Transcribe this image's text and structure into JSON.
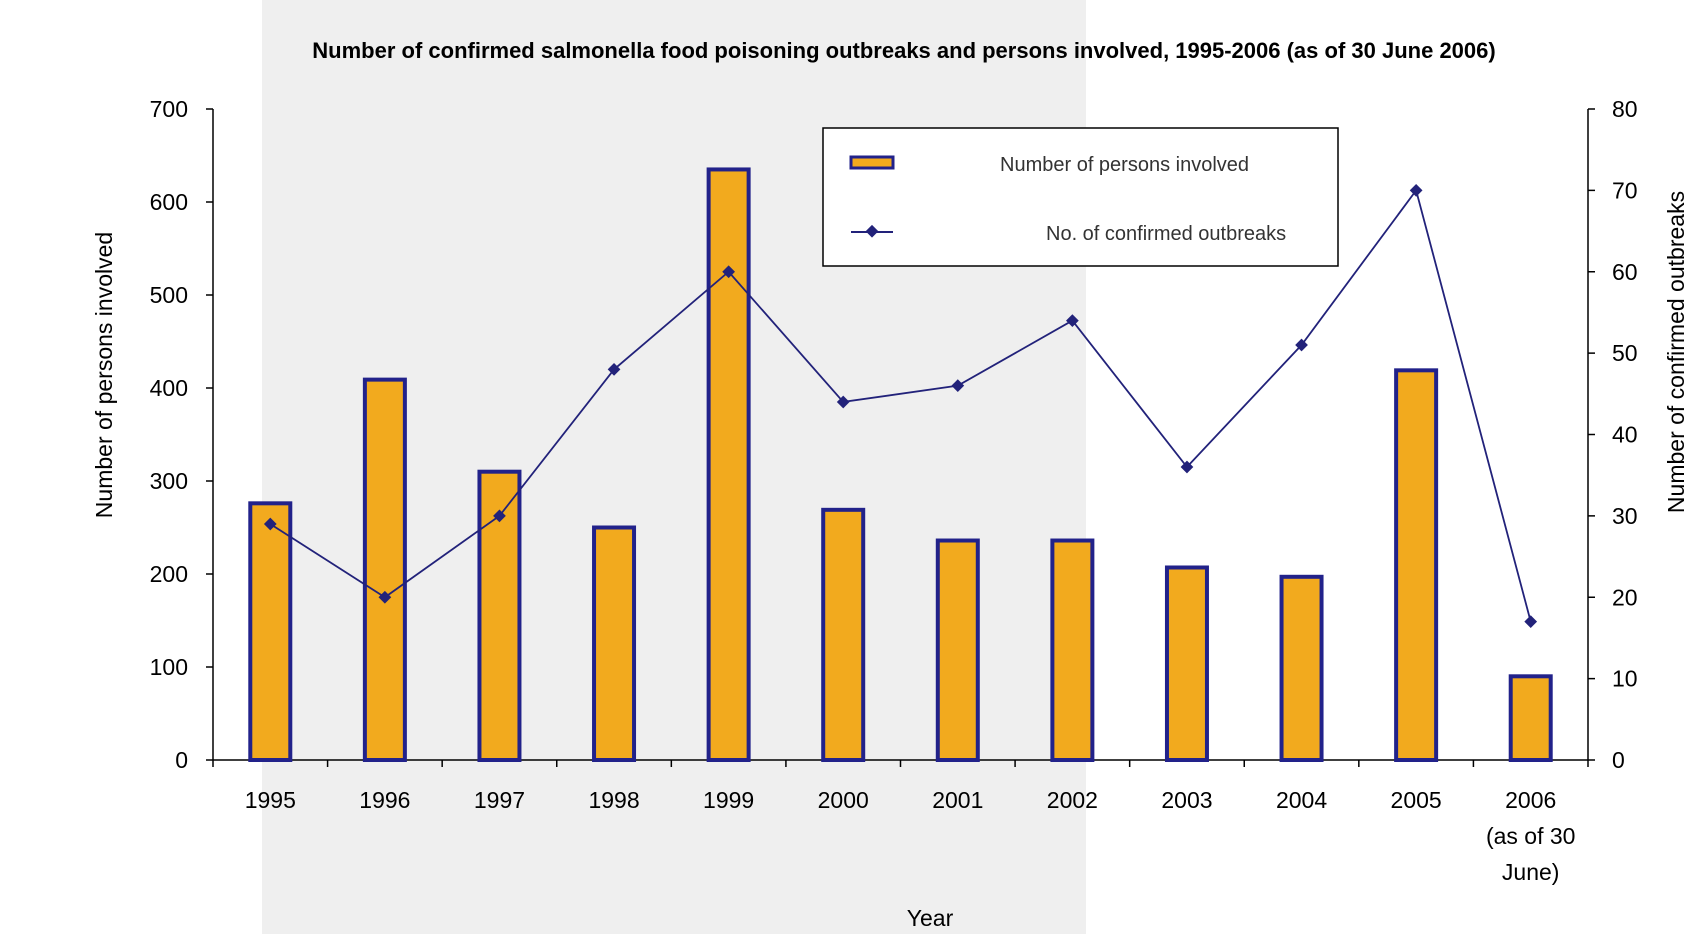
{
  "colors": {
    "bar_fill": "#F2AA1E",
    "bar_stroke": "#22228A",
    "line": "#22227A",
    "axis": "#000000",
    "shaded_band": "#EFEFEF"
  },
  "chart_data": {
    "type": "bar",
    "title": "Number of confirmed salmonella food poisoning outbreaks and persons involved, 1995-2006 (as of 30 June 2006)",
    "xlabel": "Year",
    "ylabel": "Number of persons involved",
    "y2label": "Number of confirmed outbreaks",
    "categories": [
      "1995",
      "1996",
      "1997",
      "1998",
      "1999",
      "2000",
      "2001",
      "2002",
      "2003",
      "2004",
      "2005",
      "2006 (as of 30 June)"
    ],
    "category_lines": [
      [
        "1995"
      ],
      [
        "1996"
      ],
      [
        "1997"
      ],
      [
        "1998"
      ],
      [
        "1999"
      ],
      [
        "2000"
      ],
      [
        "2001"
      ],
      [
        "2002"
      ],
      [
        "2003"
      ],
      [
        "2004"
      ],
      [
        "2005"
      ],
      [
        "2006",
        "(as of 30",
        "June)"
      ]
    ],
    "series": [
      {
        "name": "Number of persons involved",
        "type": "bar",
        "axis": "left",
        "values": [
          276,
          409,
          310,
          250,
          635,
          269,
          236,
          236,
          207,
          197,
          419,
          90
        ]
      },
      {
        "name": "No. of confirmed outbreaks",
        "type": "line",
        "axis": "right",
        "values": [
          29,
          20,
          30,
          48,
          60,
          44,
          46,
          54,
          36,
          51,
          70,
          17
        ]
      }
    ],
    "ylim": [
      0,
      700
    ],
    "yticks": [
      0,
      100,
      200,
      300,
      400,
      500,
      600,
      700
    ],
    "y2lim": [
      0,
      80
    ],
    "y2ticks": [
      0,
      10,
      20,
      30,
      40,
      50,
      60,
      70,
      80
    ],
    "legend": "top-right",
    "grid": false
  }
}
